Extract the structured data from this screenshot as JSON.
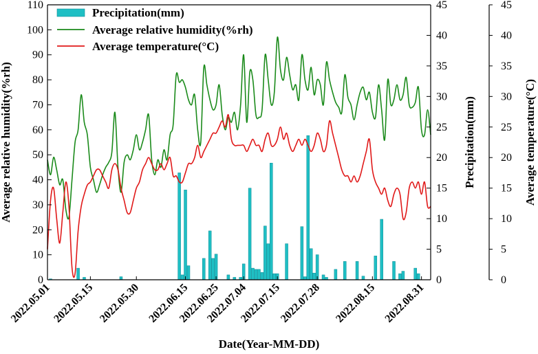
{
  "chart_data": {
    "type": "bar+line",
    "title": "",
    "xlabel": "Date(Year-MM-DD)",
    "y_left_label": "Average relative humidity(%rh)",
    "y_right1_label": "Precipitation(mm)",
    "y_right2_label": "Average temperature(°C)",
    "y_left_range": [
      0,
      110
    ],
    "y_left_ticks": [
      "0",
      "10",
      "20",
      "30",
      "40",
      "50",
      "60",
      "70",
      "80",
      "90",
      "100",
      "110"
    ],
    "y_right_range": [
      0,
      45
    ],
    "y_right_ticks": [
      "0",
      "5",
      "10",
      "15",
      "20",
      "25",
      "30",
      "35",
      "40",
      "45"
    ],
    "x_day_range": [
      0,
      125
    ],
    "x_tick_labels": [
      "2022.05.01",
      "2022.05.15",
      "2022.05.30",
      "2022.06.15",
      "2022.06.25",
      "2022.07.04",
      "2022.07.15",
      "2022.07.28",
      "2022.08.15",
      "2022.08.31"
    ],
    "x_tick_days": [
      0,
      14,
      29,
      45,
      55,
      64,
      75,
      88,
      106,
      122
    ],
    "legend": {
      "placement": "top-left",
      "precipitation": "Precipitation(mm)",
      "humidity": "Average relative humidity(%rh)",
      "temperature": "Average temperature(°C)"
    },
    "colors": {
      "precipitation": "#1fbfc4",
      "precipitation_edge": "#0e8c96",
      "humidity": "#1a8a1a",
      "temperature": "#e01818",
      "axis": "#000000"
    },
    "series": [
      {
        "name": "Average relative humidity(%rh)",
        "axis": "left",
        "days": [
          0,
          1,
          2,
          3,
          4,
          5,
          6,
          7,
          8,
          9,
          10,
          11,
          12,
          13,
          14,
          15,
          16,
          17,
          18,
          19,
          20,
          21,
          22,
          23,
          24,
          25,
          26,
          27,
          28,
          29,
          30,
          31,
          32,
          33,
          34,
          35,
          36,
          37,
          38,
          39,
          40,
          41,
          42,
          43,
          44,
          45,
          46,
          47,
          48,
          49,
          50,
          51,
          52,
          53,
          54,
          55,
          56,
          57,
          58,
          59,
          60,
          61,
          62,
          63,
          64,
          65,
          66,
          67,
          68,
          69,
          70,
          71,
          72,
          73,
          74,
          75,
          76,
          77,
          78,
          79,
          80,
          81,
          82,
          83,
          84,
          85,
          86,
          87,
          88,
          89,
          90,
          91,
          92,
          93,
          94,
          95,
          96,
          97,
          98,
          99,
          100,
          101,
          102,
          103,
          104,
          105,
          106,
          107,
          108,
          109,
          110,
          111,
          112,
          113,
          114,
          115,
          116,
          117,
          118,
          119,
          120,
          121,
          122,
          123,
          124,
          125
        ],
        "values": [
          48,
          42,
          49,
          44,
          38,
          40,
          28,
          25,
          40,
          55,
          60,
          74,
          63,
          58,
          45,
          40,
          35,
          38,
          42,
          45,
          47,
          51,
          67,
          45,
          35,
          47,
          50,
          48,
          52,
          58,
          52,
          55,
          60,
          66,
          48,
          42,
          48,
          45,
          52,
          48,
          58,
          62,
          82,
          79,
          80,
          77,
          72,
          70,
          74,
          60,
          55,
          85,
          78,
          72,
          68,
          70,
          78,
          66,
          60,
          65,
          63,
          67,
          60,
          70,
          90,
          63,
          83,
          80,
          66,
          65,
          68,
          90,
          80,
          70,
          75,
          97,
          84,
          80,
          89,
          82,
          76,
          78,
          72,
          90,
          80,
          76,
          85,
          74,
          80,
          78,
          70,
          87,
          80,
          75,
          71,
          69,
          67,
          82,
          73,
          70,
          64,
          70,
          75,
          77,
          72,
          75,
          67,
          65,
          78,
          68,
          56,
          80,
          70,
          72,
          78,
          72,
          74,
          81,
          70,
          69,
          71,
          77,
          60,
          58,
          68,
          58
        ]
      },
      {
        "name": "Average temperature(°C)",
        "axis": "right",
        "days": [
          0,
          1,
          2,
          3,
          4,
          5,
          6,
          7,
          8,
          9,
          10,
          11,
          12,
          13,
          14,
          15,
          16,
          17,
          18,
          19,
          20,
          21,
          22,
          23,
          24,
          25,
          26,
          27,
          28,
          29,
          30,
          31,
          32,
          33,
          34,
          35,
          36,
          37,
          38,
          39,
          40,
          41,
          42,
          43,
          44,
          45,
          46,
          47,
          48,
          49,
          50,
          51,
          52,
          53,
          54,
          55,
          56,
          57,
          58,
          59,
          60,
          61,
          62,
          63,
          64,
          65,
          66,
          67,
          68,
          69,
          70,
          71,
          72,
          73,
          74,
          75,
          76,
          77,
          78,
          79,
          80,
          81,
          82,
          83,
          84,
          85,
          86,
          87,
          88,
          89,
          90,
          91,
          92,
          93,
          94,
          95,
          96,
          97,
          98,
          99,
          100,
          101,
          102,
          103,
          104,
          105,
          106,
          107,
          108,
          109,
          110,
          111,
          112,
          113,
          114,
          115,
          116,
          117,
          118,
          119,
          120,
          121,
          122,
          123,
          124,
          125
        ],
        "values": [
          5,
          13,
          15,
          10,
          6,
          11,
          16,
          12,
          2,
          1,
          8,
          12,
          14,
          15.5,
          16,
          17,
          18,
          18,
          17,
          16,
          15,
          18,
          19,
          18,
          15,
          13,
          11,
          11,
          13,
          15,
          16,
          18,
          19,
          20,
          19,
          18,
          18,
          19,
          18,
          19,
          20,
          17,
          17,
          16,
          16,
          17.5,
          19,
          19,
          20,
          22,
          20,
          21,
          22,
          23,
          24,
          24,
          25,
          26,
          25,
          27,
          23,
          22,
          22,
          22,
          22,
          21,
          22,
          23,
          22,
          22,
          21,
          23,
          24,
          22,
          22,
          23,
          25,
          23,
          24,
          22,
          21,
          22,
          23,
          22,
          23,
          22,
          21,
          22,
          24,
          23,
          21,
          22,
          26,
          24,
          22,
          20,
          18,
          17,
          17,
          16,
          17,
          16,
          17,
          19,
          21,
          23,
          18,
          16,
          15,
          14,
          15,
          13,
          12,
          14,
          15,
          14,
          10,
          11,
          15,
          16,
          15,
          16,
          14,
          16,
          12,
          12
        ]
      },
      {
        "name": "Precipitation(mm)",
        "axis": "right",
        "kind": "bar",
        "days": [
          1,
          10,
          12,
          24,
          43,
          44,
          45,
          46,
          51,
          53,
          54,
          55,
          59,
          61,
          63,
          64,
          66,
          67,
          68,
          69,
          70,
          71,
          72,
          73,
          74,
          75,
          78,
          83,
          84,
          85,
          86,
          87,
          88,
          90,
          91,
          94,
          97,
          101,
          103,
          107,
          109,
          113,
          115,
          116,
          120,
          121
        ],
        "values": [
          0.15,
          1.9,
          0.4,
          0.5,
          17.5,
          0.8,
          14.7,
          2.3,
          3.5,
          8.0,
          3.5,
          4.2,
          0.8,
          0.4,
          0.4,
          2.6,
          15.0,
          1.9,
          1.7,
          1.7,
          1.2,
          8.8,
          5.9,
          19.1,
          1.0,
          1.0,
          5.9,
          8.7,
          0.5,
          23.6,
          5.1,
          1.1,
          4.1,
          0.8,
          0.4,
          1.7,
          3.0,
          3.0,
          0.6,
          3.9,
          9.9,
          3.0,
          1.0,
          1.4,
          1.9,
          1.0
        ]
      }
    ]
  }
}
